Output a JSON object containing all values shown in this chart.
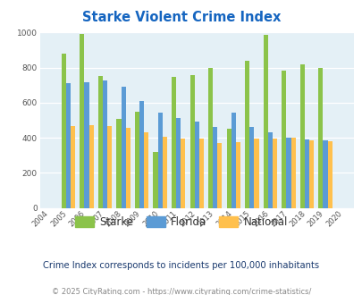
{
  "title": "Starke Violent Crime Index",
  "years": [
    2004,
    2005,
    2006,
    2007,
    2008,
    2009,
    2010,
    2011,
    2012,
    2013,
    2014,
    2015,
    2016,
    2017,
    2018,
    2019,
    2020
  ],
  "starke": [
    null,
    880,
    990,
    750,
    505,
    550,
    320,
    745,
    755,
    800,
    450,
    840,
    985,
    780,
    820,
    800,
    null
  ],
  "florida": [
    null,
    710,
    715,
    725,
    690,
    610,
    545,
    515,
    490,
    460,
    545,
    462,
    432,
    402,
    388,
    383,
    null
  ],
  "national": [
    null,
    468,
    474,
    467,
    458,
    432,
    405,
    395,
    393,
    372,
    376,
    393,
    393,
    400,
    387,
    381,
    null
  ],
  "starke_color": "#8bc34a",
  "florida_color": "#5b9bd5",
  "national_color": "#ffc04d",
  "bg_color": "#e4f0f6",
  "title_color": "#1565c0",
  "subtitle_color": "#1a3a6e",
  "footer_color": "#888888",
  "footer_link_color": "#2e7dbf",
  "ylim": [
    0,
    1000
  ],
  "yticks": [
    0,
    200,
    400,
    600,
    800,
    1000
  ],
  "subtitle": "Crime Index corresponds to incidents per 100,000 inhabitants",
  "footer": "© 2025 CityRating.com - https://www.cityrating.com/crime-statistics/",
  "legend_labels": [
    "Starke",
    "Florida",
    "National"
  ],
  "bar_width": 0.25
}
